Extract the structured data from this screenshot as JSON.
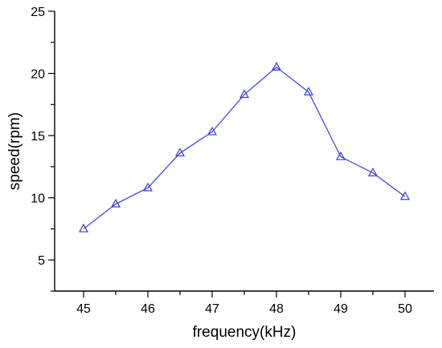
{
  "chart_data": {
    "type": "line",
    "title": "",
    "xlabel": "frequency(kHz)",
    "ylabel": "speed(rpm)",
    "xlim": [
      44.55,
      50.45
    ],
    "ylim": [
      2.5,
      25
    ],
    "xticks": [
      45,
      46,
      47,
      48,
      49,
      50
    ],
    "yticks": [
      5,
      10,
      15,
      20,
      25
    ],
    "x_minor_step": 0.5,
    "y_minor_step": 2.5,
    "grid": false,
    "marker": "triangle-open",
    "colors": {
      "series": "#3b3bd6",
      "axis": "#000000"
    },
    "series": [
      {
        "x": [
          45,
          45.5,
          46,
          46.5,
          47,
          47.5,
          48,
          48.5,
          49,
          49.5,
          50
        ],
        "values": [
          7.5,
          9.5,
          10.8,
          13.6,
          15.3,
          18.3,
          20.5,
          18.5,
          13.3,
          12.0,
          10.1
        ]
      }
    ]
  }
}
